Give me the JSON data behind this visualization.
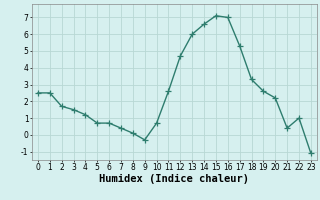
{
  "x": [
    0,
    1,
    2,
    3,
    4,
    5,
    6,
    7,
    8,
    9,
    10,
    11,
    12,
    13,
    14,
    15,
    16,
    17,
    18,
    19,
    20,
    21,
    22,
    23
  ],
  "y": [
    2.5,
    2.5,
    1.7,
    1.5,
    1.2,
    0.7,
    0.7,
    0.4,
    0.1,
    -0.3,
    0.7,
    2.6,
    4.7,
    6.0,
    6.6,
    7.1,
    7.0,
    5.3,
    3.3,
    2.6,
    2.2,
    0.4,
    1.0,
    -1.1
  ],
  "line_color": "#2e7d6e",
  "marker": "+",
  "marker_size": 4,
  "bg_color": "#d6f0ef",
  "grid_color": "#b8d8d4",
  "xlabel": "Humidex (Indice chaleur)",
  "ylim": [
    -1.5,
    7.8
  ],
  "xlim": [
    -0.5,
    23.5
  ],
  "yticks": [
    -1,
    0,
    1,
    2,
    3,
    4,
    5,
    6,
    7
  ],
  "xticks": [
    0,
    1,
    2,
    3,
    4,
    5,
    6,
    7,
    8,
    9,
    10,
    11,
    12,
    13,
    14,
    15,
    16,
    17,
    18,
    19,
    20,
    21,
    22,
    23
  ],
  "tick_fontsize": 5.5,
  "xlabel_fontsize": 7.5,
  "linewidth": 1.0
}
